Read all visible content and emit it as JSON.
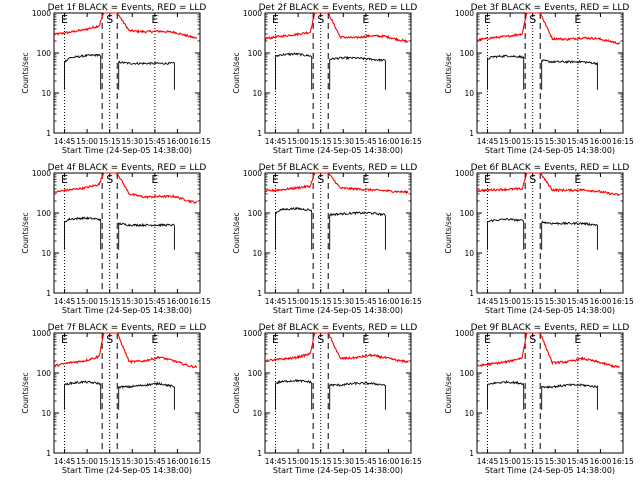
{
  "figure": {
    "panel_titles": [
      "Det 1f BLACK = Events, RED = LLD",
      "Det 2f BLACK = Events, RED = LLD",
      "Det 3f BLACK = Events, RED = LLD",
      "Det 4f BLACK = Events, RED = LLD",
      "Det 5f BLACK = Events, RED = LLD",
      "Det 6f BLACK = Events, RED = LLD",
      "Det 7f BLACK = Events, RED = LLD",
      "Det 8f BLACK = Events, RED = LLD",
      "Det 9f BLACK = Events, RED = LLD"
    ],
    "xlabel": "Start Time (24-Sep-05 14:38:00)",
    "ylabel": "Counts/sec",
    "x_ticks": [
      "14:45",
      "15:00",
      "15:15",
      "15:30",
      "15:45",
      "16:00",
      "16:15"
    ],
    "y_ticks": [
      "1",
      "10",
      "100",
      "1000"
    ],
    "markers": {
      "start": "E",
      "saa": "S",
      "end": "E"
    }
  },
  "colors": {
    "events": "#000000",
    "lld": "#ff0000",
    "axes": "#000000"
  },
  "chart_data": [
    {
      "type": "line",
      "title": "Det 1f BLACK = Events, RED = LLD",
      "xlabel": "Start Time (24-Sep-05 14:38:00)",
      "ylabel": "Counts/sec",
      "x_unit": "minutes after 14:38:00",
      "xlim": [
        0,
        97
      ],
      "ylim": [
        1,
        1000
      ],
      "yscale": "log",
      "vlines_dotted": [
        7,
        37,
        67
      ],
      "vlines_dashed": [
        32,
        42
      ],
      "series": [
        {
          "name": "LLD",
          "x": [
            0,
            10,
            20,
            30,
            33,
            42,
            50,
            60,
            70,
            80,
            90,
            95
          ],
          "y": [
            290,
            330,
            380,
            480,
            1000,
            1000,
            360,
            340,
            350,
            330,
            260,
            230
          ]
        },
        {
          "name": "Events",
          "x": [
            7,
            10,
            20,
            30,
            33,
            42,
            50,
            60,
            70,
            80
          ],
          "y": [
            60,
            75,
            85,
            90,
            60,
            60,
            55,
            55,
            55,
            55
          ]
        }
      ]
    },
    {
      "type": "line",
      "title": "Det 2f BLACK = Events, RED = LLD",
      "xlabel": "Start Time (24-Sep-05 14:38:00)",
      "ylabel": "Counts/sec",
      "x_unit": "minutes after 14:38:00",
      "xlim": [
        0,
        97
      ],
      "ylim": [
        1,
        1000
      ],
      "yscale": "log",
      "vlines_dotted": [
        7,
        37,
        67
      ],
      "vlines_dashed": [
        32,
        42
      ],
      "series": [
        {
          "name": "LLD",
          "x": [
            0,
            10,
            20,
            30,
            33,
            42,
            50,
            60,
            70,
            80,
            90,
            95
          ],
          "y": [
            230,
            260,
            290,
            330,
            1000,
            1000,
            250,
            240,
            270,
            260,
            210,
            190
          ]
        },
        {
          "name": "Events",
          "x": [
            7,
            10,
            20,
            30,
            33,
            42,
            50,
            60,
            70,
            80
          ],
          "y": [
            80,
            90,
            95,
            85,
            70,
            70,
            75,
            75,
            70,
            65
          ]
        }
      ]
    },
    {
      "type": "line",
      "title": "Det 3f BLACK = Events, RED = LLD",
      "xlabel": "Start Time (24-Sep-05 14:38:00)",
      "ylabel": "Counts/sec",
      "x_unit": "minutes after 14:38:00",
      "xlim": [
        0,
        97
      ],
      "ylim": [
        1,
        1000
      ],
      "yscale": "log",
      "vlines_dotted": [
        7,
        37,
        67
      ],
      "vlines_dashed": [
        32,
        42
      ],
      "series": [
        {
          "name": "LLD",
          "x": [
            0,
            10,
            20,
            30,
            33,
            42,
            50,
            60,
            70,
            80,
            90,
            95
          ],
          "y": [
            210,
            240,
            260,
            300,
            1000,
            1000,
            230,
            220,
            240,
            230,
            190,
            170
          ]
        },
        {
          "name": "Events",
          "x": [
            7,
            10,
            20,
            30,
            33,
            42,
            50,
            60,
            70,
            80
          ],
          "y": [
            70,
            80,
            85,
            80,
            65,
            65,
            60,
            60,
            60,
            55
          ]
        }
      ]
    },
    {
      "type": "line",
      "title": "Det 4f BLACK = Events, RED = LLD",
      "xlabel": "Start Time (24-Sep-05 14:38:00)",
      "ylabel": "Counts/sec",
      "x_unit": "minutes after 14:38:00",
      "xlim": [
        0,
        97
      ],
      "ylim": [
        1,
        1000
      ],
      "yscale": "log",
      "vlines_dotted": [
        7,
        37,
        67
      ],
      "vlines_dashed": [
        32,
        42
      ],
      "series": [
        {
          "name": "LLD",
          "x": [
            0,
            10,
            20,
            30,
            33,
            42,
            50,
            60,
            70,
            80,
            90,
            95
          ],
          "y": [
            330,
            380,
            420,
            520,
            1000,
            1000,
            300,
            250,
            260,
            260,
            200,
            180
          ]
        },
        {
          "name": "Events",
          "x": [
            7,
            10,
            20,
            30,
            33,
            42,
            50,
            60,
            70,
            80
          ],
          "y": [
            60,
            70,
            75,
            70,
            55,
            55,
            50,
            50,
            50,
            50
          ]
        }
      ]
    },
    {
      "type": "line",
      "title": "Det 5f BLACK = Events, RED = LLD",
      "xlabel": "Start Time (24-Sep-05 14:38:00)",
      "ylabel": "Counts/sec",
      "x_unit": "minutes after 14:38:00",
      "xlim": [
        0,
        97
      ],
      "ylim": [
        1,
        1000
      ],
      "yscale": "log",
      "vlines_dotted": [
        7,
        37,
        67
      ],
      "vlines_dashed": [
        32,
        42
      ],
      "series": [
        {
          "name": "LLD",
          "x": [
            0,
            10,
            20,
            30,
            33,
            42,
            50,
            60,
            70,
            80,
            90,
            95
          ],
          "y": [
            350,
            380,
            420,
            470,
            1000,
            1000,
            420,
            400,
            380,
            360,
            340,
            330
          ]
        },
        {
          "name": "Events",
          "x": [
            7,
            10,
            20,
            30,
            33,
            42,
            50,
            60,
            70,
            80
          ],
          "y": [
            100,
            120,
            130,
            120,
            90,
            90,
            95,
            100,
            100,
            90
          ]
        }
      ]
    },
    {
      "type": "line",
      "title": "Det 6f BLACK = Events, RED = LLD",
      "xlabel": "Start Time (24-Sep-05 14:38:00)",
      "ylabel": "Counts/sec",
      "x_unit": "minutes after 14:38:00",
      "xlim": [
        0,
        97
      ],
      "ylim": [
        1,
        1000
      ],
      "yscale": "log",
      "vlines_dotted": [
        7,
        37,
        67
      ],
      "vlines_dashed": [
        32,
        42
      ],
      "series": [
        {
          "name": "LLD",
          "x": [
            0,
            10,
            20,
            30,
            33,
            42,
            50,
            60,
            70,
            80,
            90,
            95
          ],
          "y": [
            360,
            380,
            390,
            400,
            1000,
            1000,
            380,
            370,
            380,
            350,
            300,
            280
          ]
        },
        {
          "name": "Events",
          "x": [
            7,
            10,
            20,
            30,
            33,
            42,
            50,
            60,
            70,
            80
          ],
          "y": [
            60,
            65,
            70,
            65,
            60,
            60,
            55,
            55,
            55,
            50
          ]
        }
      ]
    },
    {
      "type": "line",
      "title": "Det 7f BLACK = Events, RED = LLD",
      "xlabel": "Start Time (24-Sep-05 14:38:00)",
      "ylabel": "Counts/sec",
      "x_unit": "minutes after 14:38:00",
      "xlim": [
        0,
        97
      ],
      "ylim": [
        1,
        1000
      ],
      "yscale": "log",
      "vlines_dotted": [
        7,
        37,
        67
      ],
      "vlines_dashed": [
        32,
        42
      ],
      "series": [
        {
          "name": "LLD",
          "x": [
            0,
            10,
            20,
            30,
            33,
            42,
            50,
            60,
            70,
            80,
            90,
            95
          ],
          "y": [
            150,
            180,
            200,
            260,
            1000,
            1000,
            190,
            200,
            250,
            200,
            150,
            140
          ]
        },
        {
          "name": "Events",
          "x": [
            7,
            10,
            20,
            30,
            33,
            42,
            50,
            60,
            70,
            80
          ],
          "y": [
            50,
            55,
            60,
            55,
            45,
            45,
            45,
            50,
            55,
            45
          ]
        }
      ]
    },
    {
      "type": "line",
      "title": "Det 8f BLACK = Events, RED = LLD",
      "xlabel": "Start Time (24-Sep-05 14:38:00)",
      "ylabel": "Counts/sec",
      "x_unit": "minutes after 14:38:00",
      "xlim": [
        0,
        97
      ],
      "ylim": [
        1,
        1000
      ],
      "yscale": "log",
      "vlines_dotted": [
        7,
        37,
        67
      ],
      "vlines_dashed": [
        32,
        42
      ],
      "series": [
        {
          "name": "LLD",
          "x": [
            0,
            10,
            20,
            30,
            33,
            42,
            50,
            60,
            70,
            80,
            90,
            95
          ],
          "y": [
            200,
            220,
            240,
            300,
            1000,
            1000,
            230,
            240,
            280,
            240,
            200,
            190
          ]
        },
        {
          "name": "Events",
          "x": [
            7,
            10,
            20,
            30,
            33,
            42,
            50,
            60,
            70,
            80
          ],
          "y": [
            55,
            60,
            65,
            60,
            50,
            50,
            50,
            55,
            55,
            50
          ]
        }
      ]
    },
    {
      "type": "line",
      "title": "Det 9f BLACK = Events, RED = LLD",
      "xlabel": "Start Time (24-Sep-05 14:38:00)",
      "ylabel": "Counts/sec",
      "x_unit": "minutes after 14:38:00",
      "xlim": [
        0,
        97
      ],
      "ylim": [
        1,
        1000
      ],
      "yscale": "log",
      "vlines_dotted": [
        7,
        37,
        67
      ],
      "vlines_dashed": [
        32,
        42
      ],
      "series": [
        {
          "name": "LLD",
          "x": [
            0,
            10,
            20,
            30,
            33,
            42,
            50,
            60,
            70,
            80,
            90,
            95
          ],
          "y": [
            150,
            170,
            190,
            240,
            1000,
            1000,
            180,
            190,
            230,
            190,
            150,
            140
          ]
        },
        {
          "name": "Events",
          "x": [
            7,
            10,
            20,
            30,
            33,
            42,
            50,
            60,
            70,
            80
          ],
          "y": [
            50,
            55,
            60,
            55,
            45,
            45,
            45,
            50,
            50,
            45
          ]
        }
      ]
    }
  ]
}
